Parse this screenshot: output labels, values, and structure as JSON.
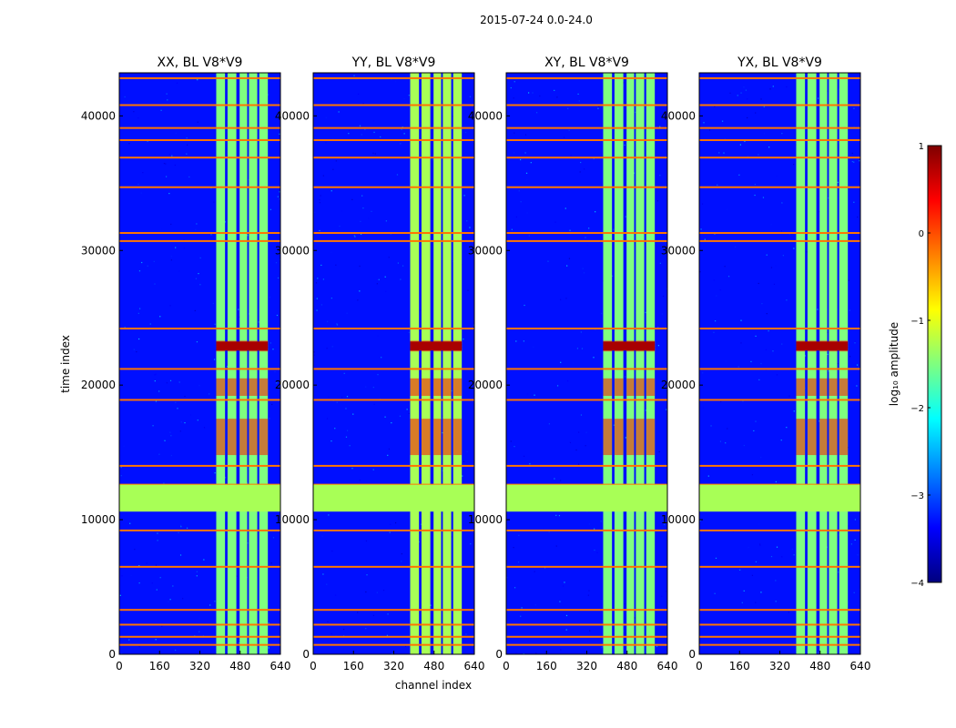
{
  "figure_title": "2015-07-24 0.0-24.0",
  "chart_data": {
    "type": "heatmap",
    "panels": [
      {
        "title": "XX, BL V8*V9",
        "polarization": "XX"
      },
      {
        "title": "YY, BL V8*V9",
        "polarization": "YY"
      },
      {
        "title": "XY, BL V8*V9",
        "polarization": "XY"
      },
      {
        "title": "YX, BL V8*V9",
        "polarization": "YX"
      }
    ],
    "xlabel": "channel index",
    "ylabel": "time index",
    "xlim": [
      0,
      640
    ],
    "ylim": [
      0,
      43200
    ],
    "xticks": [
      0,
      160,
      320,
      480,
      640
    ],
    "xtick_labels": [
      "0",
      "160",
      "320",
      "480",
      "640"
    ],
    "yticks": [
      0,
      10000,
      20000,
      30000,
      40000
    ],
    "ytick_labels": [
      "0",
      "10000",
      "20000",
      "30000",
      "40000"
    ],
    "colorbar": {
      "label": "log₁₀ amplitude",
      "range": [
        -4,
        1
      ],
      "ticks": [
        1,
        0,
        -1,
        -2,
        -3,
        -4
      ],
      "tick_labels": [
        "1",
        "0",
        "−1",
        "−2",
        "−3",
        "−4"
      ],
      "colormap": "jet",
      "colors": [
        "#00007f",
        "#0000ff",
        "#007fff",
        "#00ffff",
        "#7fff7f",
        "#ffff00",
        "#ff7f00",
        "#ff0000",
        "#7f0000"
      ]
    },
    "features": {
      "flagged_time_ranges": [
        [
          10600,
          12600
        ]
      ],
      "flagged_value": -1.3,
      "background_value": -3.3,
      "bright_channel_band": [
        385,
        590
      ],
      "bright_channel_stripes": [
        [
          385,
          420
        ],
        [
          430,
          465
        ],
        [
          478,
          508
        ],
        [
          515,
          548
        ],
        [
          556,
          590
        ]
      ],
      "bright_band_value": -1.5,
      "burst_time_ranges": [
        [
          14800,
          17500
        ],
        [
          19200,
          20500
        ],
        [
          22500,
          23300
        ]
      ],
      "burst_value": 0.3,
      "high_time_rows": [
        22700,
        22900,
        23100
      ],
      "orange_line_times": [
        700,
        1300,
        2200,
        3300,
        6500,
        9200,
        12600,
        14000,
        18900,
        21200,
        24200,
        30700,
        31300,
        34700,
        36900,
        38200,
        39100,
        40800,
        42800
      ]
    }
  }
}
